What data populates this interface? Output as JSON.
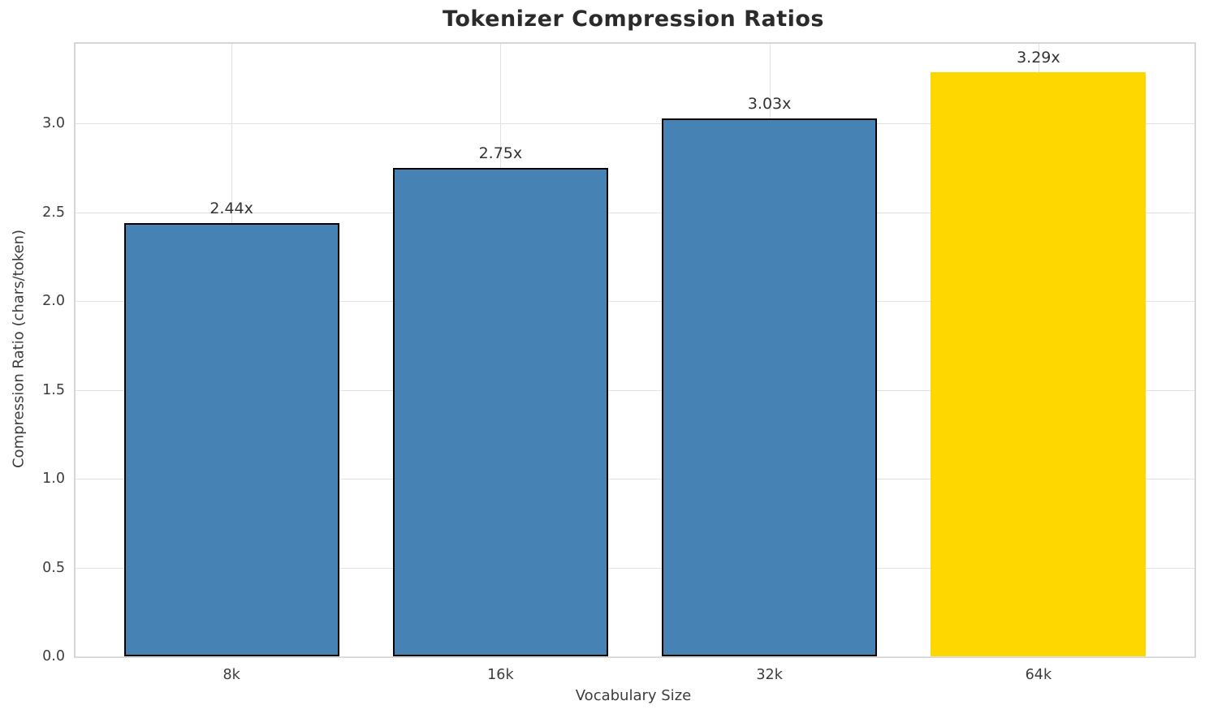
{
  "chart_data": {
    "type": "bar",
    "title": "Tokenizer Compression Ratios",
    "xlabel": "Vocabulary Size",
    "ylabel": "Compression Ratio (chars/token)",
    "categories": [
      "8k",
      "16k",
      "32k",
      "64k"
    ],
    "values": [
      2.44,
      2.75,
      3.03,
      3.29
    ],
    "bar_labels": [
      "2.44x",
      "2.75x",
      "3.03x",
      "3.29x"
    ],
    "ylim": [
      0,
      3.45
    ],
    "yticks": [
      0,
      0.5,
      1,
      1.5,
      2,
      2.5,
      3
    ],
    "ytick_labels": [
      "0.0",
      "0.5",
      "1.0",
      "1.5",
      "2.0",
      "2.5",
      "3.0"
    ],
    "grid": "on",
    "legend": "none",
    "highlight_index": 3,
    "colors": {
      "bar": "#4682B4",
      "highlight": "#FFD700",
      "edge": "#000000",
      "grid": "#e2e2e2",
      "spine": "#d6d6d6",
      "text": "#3d3d3d",
      "title": "#2b2b2b"
    }
  }
}
